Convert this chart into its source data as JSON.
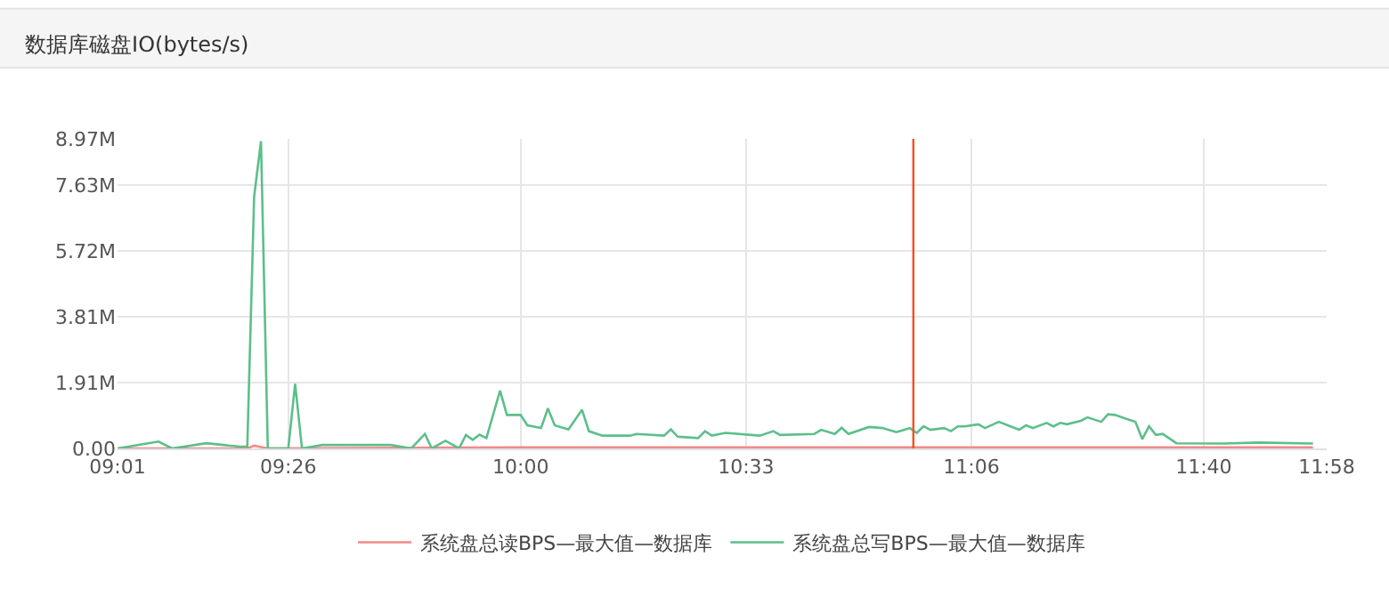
{
  "chart_data": {
    "type": "line",
    "title": "数据库磁盘IO(bytes/s)",
    "xlim": [
      9.0167,
      11.9667
    ],
    "xticks": [
      {
        "value": 9.0167,
        "label": "09:01"
      },
      {
        "value": 9.4333,
        "label": "09:26"
      },
      {
        "value": 10.0,
        "label": "10:00"
      },
      {
        "value": 10.55,
        "label": "10:33"
      },
      {
        "value": 11.1,
        "label": "11:06"
      },
      {
        "value": 11.6667,
        "label": "11:40"
      },
      {
        "value": 11.9667,
        "label": "11:58"
      }
    ],
    "ylim": [
      0,
      8.97
    ],
    "yticks": [
      {
        "value": 0,
        "label": "0.00"
      },
      {
        "value": 1.91,
        "label": "1.91M"
      },
      {
        "value": 3.81,
        "label": "3.81M"
      },
      {
        "value": 5.72,
        "label": "5.72M"
      },
      {
        "value": 7.63,
        "label": "7.63M"
      },
      {
        "value": 8.97,
        "label": "8.97M"
      }
    ],
    "grid": true,
    "legend": "bottom",
    "marker": "none",
    "line_style": "solid",
    "ref_lines": [
      {
        "axis": "x",
        "value": 10.9583,
        "color": "#f4511e"
      }
    ],
    "series": [
      {
        "name": "系统盘总读BPS—最大值—数据库",
        "color": "#f08a8a",
        "x": [
          9.0167,
          9.3333,
          9.35,
          9.3833,
          10.0,
          10.5,
          11.0,
          11.5,
          11.9333
        ],
        "values": [
          0,
          0,
          0.08,
          0,
          0.03,
          0.03,
          0.03,
          0.03,
          0.03
        ]
      },
      {
        "name": "系统盘总写BPS—最大值—数据库",
        "color": "#5cbf8a",
        "x": [
          9.0167,
          9.1167,
          9.15,
          9.2333,
          9.3167,
          9.3333,
          9.35,
          9.3667,
          9.3833,
          9.4333,
          9.45,
          9.4667,
          9.5167,
          9.6,
          9.6833,
          9.7333,
          9.7667,
          9.7833,
          9.8167,
          9.85,
          9.8667,
          9.8833,
          9.9,
          9.9167,
          9.95,
          9.9667,
          10.0,
          10.0167,
          10.05,
          10.0667,
          10.0833,
          10.1167,
          10.15,
          10.1667,
          10.2,
          10.2667,
          10.2833,
          10.35,
          10.3667,
          10.3833,
          10.4333,
          10.45,
          10.4667,
          10.5,
          10.5833,
          10.6167,
          10.6333,
          10.7167,
          10.7333,
          10.7667,
          10.7833,
          10.8,
          10.85,
          10.8833,
          10.9167,
          10.95,
          10.9667,
          10.9833,
          11.0,
          11.0333,
          11.05,
          11.0667,
          11.0833,
          11.1167,
          11.1333,
          11.1667,
          11.2167,
          11.2333,
          11.25,
          11.2833,
          11.3,
          11.3167,
          11.3333,
          11.3667,
          11.3833,
          11.4167,
          11.4333,
          11.45,
          11.5,
          11.5167,
          11.5333,
          11.55,
          11.5667,
          11.6,
          11.7167,
          11.8,
          11.9333
        ],
        "values": [
          0,
          0.2,
          0,
          0.15,
          0.05,
          0.05,
          7.3,
          8.9,
          0,
          0,
          1.87,
          0,
          0.1,
          0.1,
          0.1,
          0,
          0.42,
          0,
          0.22,
          0,
          0.39,
          0.25,
          0.4,
          0.3,
          1.67,
          0.97,
          0.97,
          0.67,
          0.59,
          1.16,
          0.67,
          0.55,
          1.12,
          0.5,
          0.37,
          0.37,
          0.42,
          0.37,
          0.55,
          0.34,
          0.3,
          0.5,
          0.37,
          0.45,
          0.37,
          0.5,
          0.39,
          0.42,
          0.54,
          0.42,
          0.6,
          0.42,
          0.62,
          0.59,
          0.47,
          0.59,
          0.45,
          0.64,
          0.54,
          0.59,
          0.5,
          0.64,
          0.64,
          0.7,
          0.59,
          0.77,
          0.54,
          0.67,
          0.59,
          0.74,
          0.64,
          0.74,
          0.7,
          0.8,
          0.9,
          0.77,
          0.99,
          0.97,
          0.77,
          0.27,
          0.64,
          0.39,
          0.42,
          0.15,
          0.14,
          0.17,
          0.14
        ]
      }
    ]
  }
}
